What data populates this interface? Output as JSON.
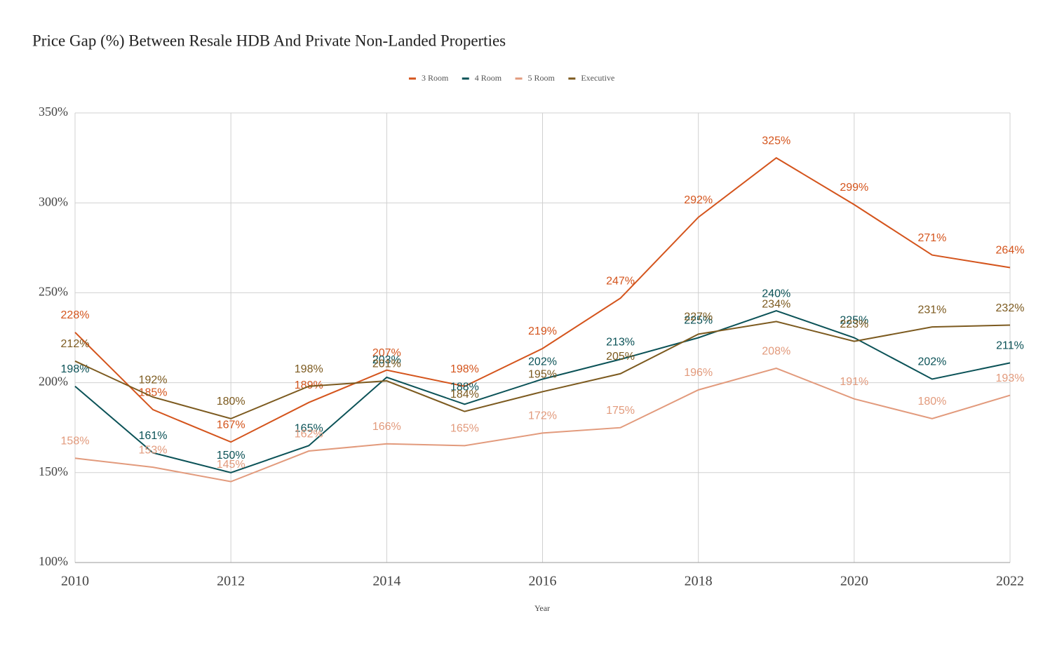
{
  "chart_data": {
    "type": "line",
    "title": "Price Gap (%) Between Resale HDB And Private Non-Landed Properties",
    "x_label": "Year",
    "x": [
      2010,
      2011,
      2012,
      2013,
      2014,
      2015,
      2016,
      2017,
      2018,
      2019,
      2020,
      2021,
      2022
    ],
    "xlim": [
      2010,
      2022
    ],
    "xticks": [
      2010,
      2012,
      2014,
      2016,
      2018,
      2020,
      2022
    ],
    "ylim": [
      100,
      350
    ],
    "yticks": [
      {
        "value": 100,
        "label": "100%"
      },
      {
        "value": 150,
        "label": "150%"
      },
      {
        "value": 200,
        "label": "200%"
      },
      {
        "value": 250,
        "label": "250%"
      },
      {
        "value": 300,
        "label": "300%"
      },
      {
        "value": 350,
        "label": "350%"
      }
    ],
    "grid": true,
    "legend": "top",
    "series": [
      {
        "name": "3 Room",
        "color": "#d4541c",
        "values": [
          228,
          185,
          167,
          189,
          207,
          198,
          219,
          247,
          292,
          325,
          299,
          271,
          264
        ],
        "value_labels": [
          "228%",
          "185%",
          "167%",
          "189%",
          "207%",
          "198%",
          "219%",
          "247%",
          "292%",
          "325%",
          "299%",
          "271%",
          "264%"
        ]
      },
      {
        "name": "4 Room",
        "color": "#0b5257",
        "values": [
          198,
          161,
          150,
          165,
          203,
          188,
          202,
          213,
          225,
          240,
          225,
          202,
          211
        ],
        "value_labels": [
          "198%",
          "161%",
          "150%",
          "165%",
          "203%",
          "188%",
          "202%",
          "213%",
          "225%",
          "240%",
          "225%",
          "202%",
          "211%"
        ]
      },
      {
        "name": "5 Room",
        "color": "#e29a7c",
        "values": [
          158,
          153,
          145,
          162,
          166,
          165,
          172,
          175,
          196,
          208,
          191,
          180,
          193
        ],
        "value_labels": [
          "158%",
          "153%",
          "145%",
          "162%",
          "166%",
          "165%",
          "172%",
          "175%",
          "196%",
          "208%",
          "191%",
          "180%",
          "193%"
        ]
      },
      {
        "name": "Executive",
        "color": "#7c5a1f",
        "values": [
          212,
          192,
          180,
          198,
          201,
          184,
          195,
          205,
          227,
          234,
          223,
          231,
          232
        ],
        "value_labels": [
          "212%",
          "192%",
          "180%",
          "198%",
          "201%",
          "184%",
          "195%",
          "205%",
          "227%",
          "234%",
          "223%",
          "231%",
          "232%"
        ]
      }
    ]
  }
}
